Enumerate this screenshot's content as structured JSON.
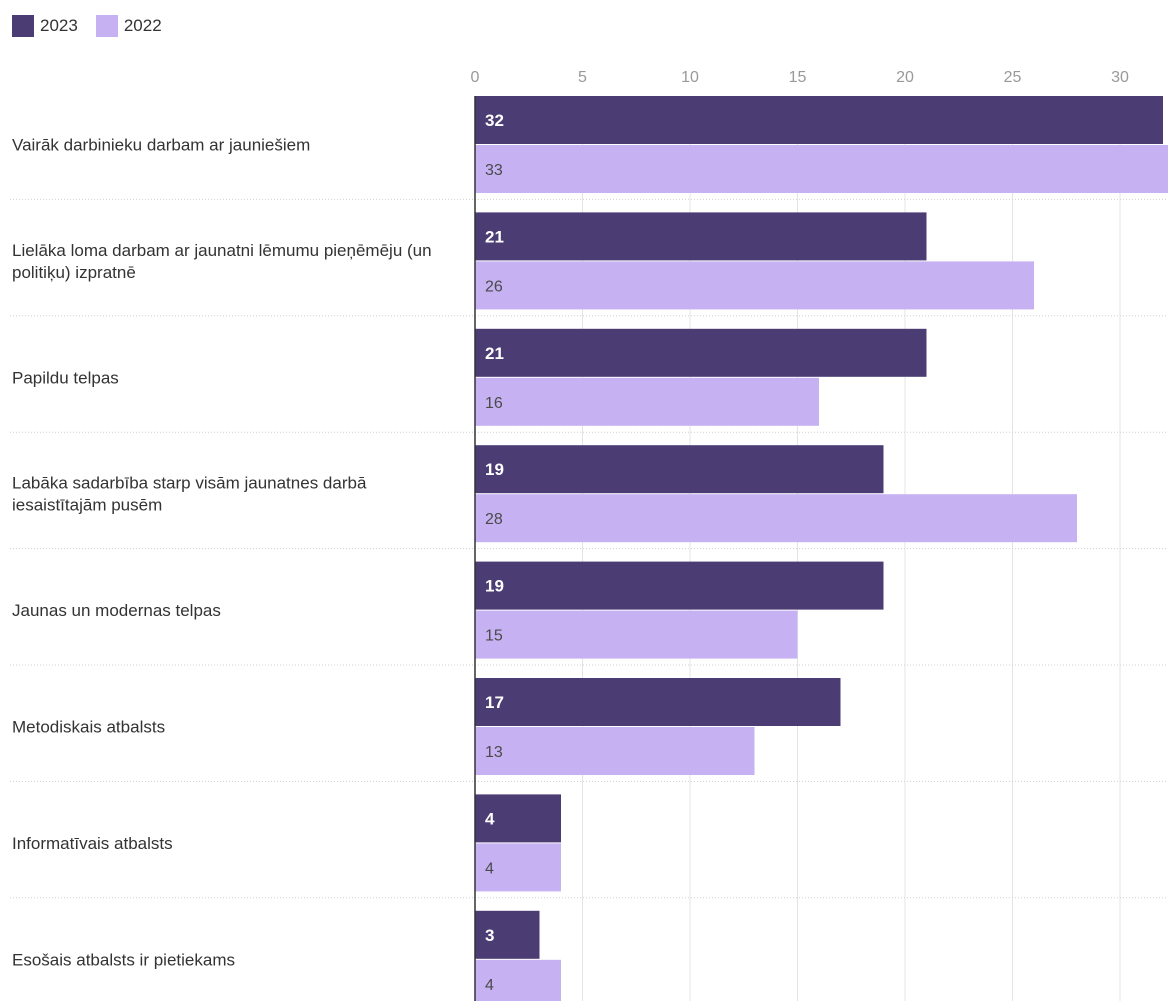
{
  "chart_data": {
    "type": "bar",
    "orientation": "horizontal",
    "categories": [
      "Vairāk darbinieku darbam ar jauniešiem",
      "Lielāka loma darbam ar jaunatni lēmumu pieņēmēju (un politiķu) izpratnē",
      "Papildu telpas",
      "Labāka sadarbība starp visām jaunatnes darbā iesaistītajām pusēm",
      "Jaunas un modernas telpas",
      "Metodiskais atbalsts",
      "Informatīvais atbalsts",
      "Esošais atbalsts ir pietiekams"
    ],
    "series": [
      {
        "name": "2023",
        "color": "#4b3c73",
        "values": [
          32,
          21,
          21,
          19,
          19,
          17,
          4,
          3
        ]
      },
      {
        "name": "2022",
        "color": "#c6b2f3",
        "values": [
          33,
          26,
          16,
          28,
          15,
          13,
          4,
          4
        ]
      }
    ],
    "xticks": [
      "0",
      "5",
      "10",
      "15",
      "20",
      "25",
      "30"
    ],
    "xlim": [
      0,
      32
    ],
    "grid": true,
    "legend_position": "top-left",
    "title": "",
    "xlabel": "",
    "ylabel": ""
  }
}
